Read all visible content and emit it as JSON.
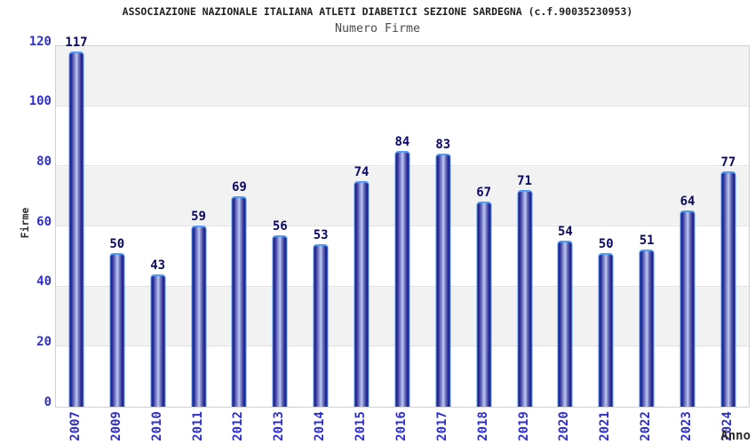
{
  "header": {
    "title": "ASSOCIAZIONE NAZIONALE ITALIANA ATLETI DIABETICI SEZIONE SARDEGNA (c.f.90035230953)",
    "subtitle": "Numero Firme"
  },
  "chart_data": {
    "type": "bar",
    "title": "Numero Firme",
    "categories": [
      "2007",
      "2009",
      "2010",
      "2011",
      "2012",
      "2013",
      "2014",
      "2015",
      "2016",
      "2017",
      "2018",
      "2019",
      "2020",
      "2021",
      "2022",
      "2023",
      "2024"
    ],
    "values": [
      117,
      50,
      43,
      59,
      69,
      56,
      53,
      74,
      84,
      83,
      67,
      71,
      54,
      50,
      51,
      64,
      77
    ],
    "xlabel": "Anno",
    "ylabel": "Firme",
    "ylim": [
      0,
      120
    ],
    "y_ticks": [
      0,
      20,
      40,
      60,
      80,
      100,
      120
    ],
    "grid": "horizontal-bands-alternating",
    "legend": "none",
    "x_tick_rotation_deg": -90,
    "colors": {
      "title": "#1f1f1f",
      "subtitle": "#4a4a4a",
      "axis_title": "#2b2b2b",
      "tick_label": "#2e2ed2",
      "value_label": "#0a0a66",
      "bar_dark": "#1b1b7e",
      "bar_dark2": "#30309a",
      "bar_mid": "#9aa2da",
      "bar_mid2": "#7a82c4",
      "bar_light": "#c0c8f2",
      "bar_border": "#4f9cfa",
      "band": "#f2f2f2",
      "gridline": "#e4e4e4",
      "plot_border": "#d0d0d0"
    }
  }
}
